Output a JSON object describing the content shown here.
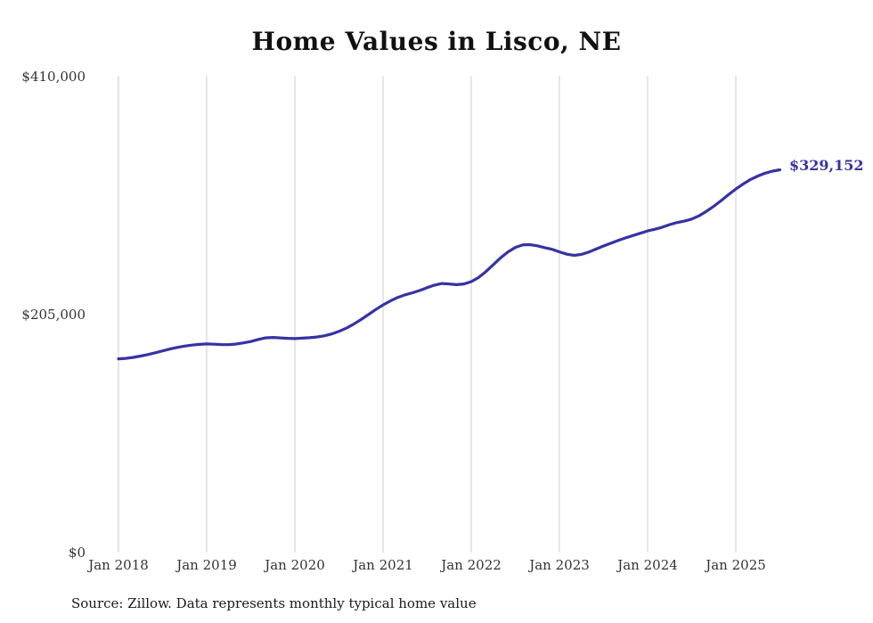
{
  "title": "Home Values in Lisco, NE",
  "source_note": "Source: Zillow. Data represents monthly typical home value",
  "end_label": "$329,152",
  "colors": {
    "line": "#3533a3",
    "grid": "#cccccc",
    "title_text": "#111111",
    "axis_text": "#333333"
  },
  "chart_data": {
    "type": "line",
    "title": "Home Values in Lisco, NE",
    "xlabel": "",
    "ylabel": "",
    "ylim": [
      0,
      410000
    ],
    "y_tick_values": [
      0,
      205000,
      410000
    ],
    "y_tick_labels": [
      "$0",
      "$205,000",
      "$410,000"
    ],
    "x_tick_labels": [
      "Jan 2018",
      "Jan 2019",
      "Jan 2020",
      "Jan 2021",
      "Jan 2022",
      "Jan 2023",
      "Jan 2024",
      "Jan 2025"
    ],
    "x_start": "2018-01",
    "x_end": "2025-07",
    "frequency": "monthly",
    "grid": "vertical-only",
    "legend_position": "none",
    "final_value": 329152,
    "series": [
      {
        "name": "Typical home value",
        "values": [
          166600,
          167000,
          167800,
          169000,
          170300,
          171800,
          173400,
          175000,
          176400,
          177600,
          178400,
          179000,
          179400,
          179200,
          178900,
          178800,
          179300,
          180300,
          181500,
          183200,
          184600,
          185000,
          184600,
          184200,
          184000,
          184400,
          184800,
          185400,
          186400,
          188000,
          190200,
          193000,
          196400,
          200400,
          204600,
          209000,
          213000,
          216400,
          219400,
          221600,
          223400,
          225400,
          227800,
          230000,
          231400,
          231000,
          230400,
          231000,
          233000,
          236600,
          241600,
          247600,
          253400,
          258600,
          262400,
          264600,
          264800,
          263800,
          262200,
          260800,
          258600,
          256600,
          255600,
          256400,
          258400,
          261000,
          263600,
          266000,
          268400,
          270600,
          272600,
          274600,
          276600,
          278000,
          279800,
          282000,
          283800,
          285000,
          286800,
          289600,
          293400,
          297800,
          302600,
          307800,
          312600,
          317000,
          320800,
          323800,
          326200,
          328000,
          329152
        ]
      }
    ]
  }
}
